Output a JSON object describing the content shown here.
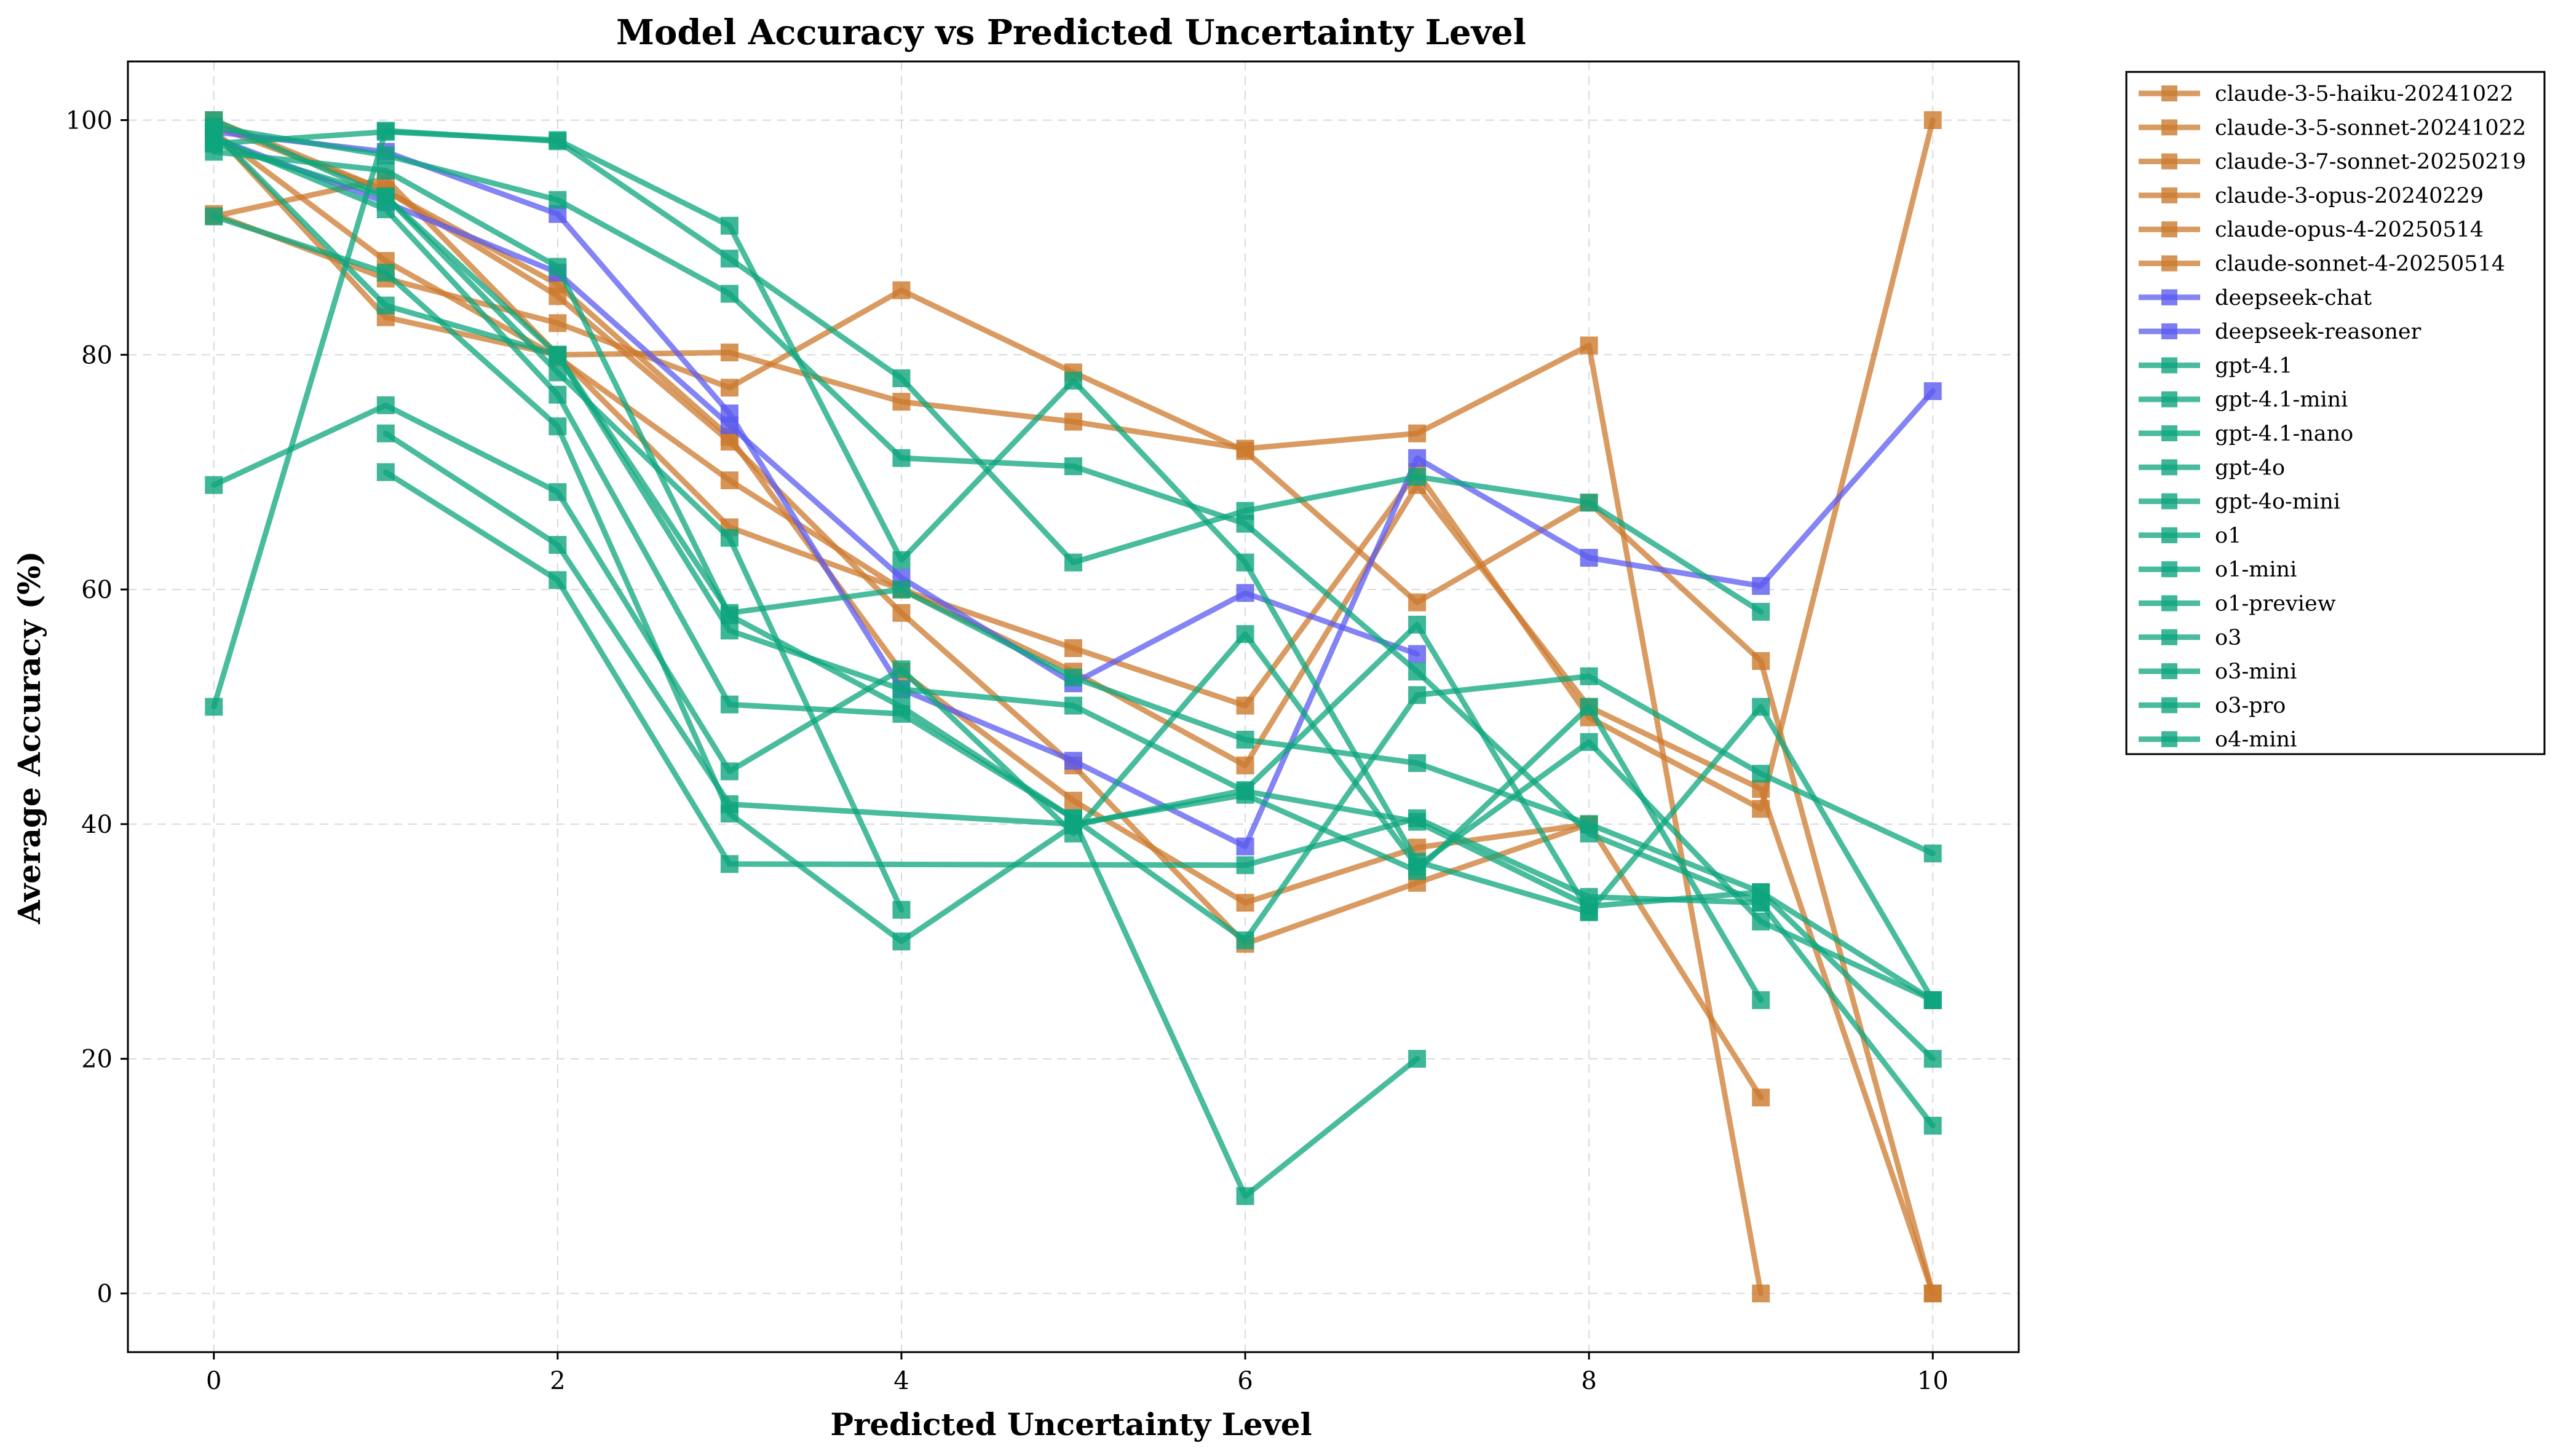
{
  "chart_data": {
    "type": "line",
    "title": "Model Accuracy vs Predicted Uncertainty Level",
    "xlabel": "Predicted Uncertainty Level",
    "ylabel": "Average Accuracy (%)",
    "xlim": [
      -0.5,
      10.5
    ],
    "ylim": [
      -5,
      105
    ],
    "xticks": [
      0,
      2,
      4,
      6,
      8,
      10
    ],
    "yticks": [
      0,
      20,
      40,
      60,
      80,
      100
    ],
    "grid": true,
    "legend_position": "outside-right",
    "colors": {
      "claude": "#cc7a2e",
      "deepseek": "#5b5bf0",
      "openai": "#0ea57e"
    },
    "series": [
      {
        "name": "claude-3-5-haiku-20241022",
        "family": "claude",
        "points": [
          [
            0,
            91.8
          ],
          [
            1,
            95.0
          ],
          [
            2,
            80.0
          ],
          [
            3,
            80.2
          ],
          [
            4,
            76.0
          ],
          [
            5,
            74.3
          ],
          [
            6,
            72.0
          ],
          [
            7,
            73.3
          ],
          [
            8,
            80.8
          ],
          [
            9,
            0.0
          ]
        ]
      },
      {
        "name": "claude-3-5-sonnet-20241022",
        "family": "claude",
        "points": [
          [
            0,
            100.0
          ],
          [
            1,
            94.0
          ],
          [
            2,
            85.0
          ],
          [
            3,
            72.6
          ],
          [
            4,
            58.0
          ],
          [
            5,
            45.0
          ],
          [
            6,
            29.8
          ],
          [
            7,
            35.0
          ],
          [
            8,
            40.0
          ],
          [
            9,
            16.7
          ]
        ]
      },
      {
        "name": "claude-3-7-sonnet-20250219",
        "family": "claude",
        "points": [
          [
            0,
            99.0
          ],
          [
            1,
            88.0
          ],
          [
            2,
            79.8
          ],
          [
            3,
            69.3
          ],
          [
            4,
            60.0
          ],
          [
            5,
            53.0
          ],
          [
            6,
            45.0
          ],
          [
            7,
            68.9
          ],
          [
            8,
            50.0
          ],
          [
            9,
            43.0
          ],
          [
            10,
            0.0
          ]
        ]
      },
      {
        "name": "claude-3-opus-20240229",
        "family": "claude",
        "points": [
          [
            0,
            92.0
          ],
          [
            1,
            86.5
          ],
          [
            2,
            82.7
          ],
          [
            3,
            77.2
          ],
          [
            4,
            85.5
          ],
          [
            5,
            78.5
          ],
          [
            6,
            71.8
          ],
          [
            7,
            58.9
          ],
          [
            8,
            67.4
          ],
          [
            9,
            53.9
          ],
          [
            10,
            0.0
          ]
        ]
      },
      {
        "name": "claude-opus-4-20250514",
        "family": "claude",
        "points": [
          [
            0,
            99.0
          ],
          [
            1,
            83.2
          ],
          [
            2,
            80.0
          ],
          [
            3,
            65.3
          ],
          [
            4,
            60.0
          ],
          [
            5,
            55.0
          ],
          [
            6,
            50.1
          ],
          [
            7,
            70.0
          ],
          [
            8,
            49.1
          ],
          [
            9,
            41.3
          ],
          [
            10,
            100.0
          ]
        ]
      },
      {
        "name": "claude-sonnet-4-20250514",
        "family": "claude",
        "points": [
          [
            0,
            99.5
          ],
          [
            1,
            94.0
          ],
          [
            2,
            86.0
          ],
          [
            3,
            73.0
          ],
          [
            4,
            53.0
          ],
          [
            5,
            42.0
          ],
          [
            6,
            33.3
          ],
          [
            7,
            38.0
          ],
          [
            8,
            40.0
          ]
        ]
      },
      {
        "name": "deepseek-chat",
        "family": "deepseek",
        "points": [
          [
            0,
            99.0
          ],
          [
            1,
            97.3
          ],
          [
            2,
            92.0
          ],
          [
            3,
            75.0
          ],
          [
            4,
            51.5
          ],
          [
            5,
            45.4
          ],
          [
            6,
            38.1
          ],
          [
            7,
            71.2
          ],
          [
            8,
            62.7
          ],
          [
            9,
            60.3
          ],
          [
            10,
            76.9
          ]
        ]
      },
      {
        "name": "deepseek-reasoner",
        "family": "deepseek",
        "points": [
          [
            0,
            98.5
          ],
          [
            1,
            93.0
          ],
          [
            2,
            87.0
          ],
          [
            3,
            74.0
          ],
          [
            4,
            61.0
          ],
          [
            5,
            52.0
          ],
          [
            6,
            59.7
          ],
          [
            7,
            54.5
          ]
        ]
      },
      {
        "name": "gpt-4.1",
        "family": "openai",
        "points": [
          [
            0,
            100.0
          ],
          [
            1,
            93.5
          ],
          [
            2,
            80.0
          ],
          [
            3,
            58.0
          ],
          [
            4,
            60.0
          ],
          [
            5,
            52.5
          ],
          [
            6,
            47.2
          ],
          [
            7,
            45.2
          ],
          [
            8,
            40.0
          ],
          [
            9,
            34.2
          ],
          [
            10,
            20.0
          ]
        ]
      },
      {
        "name": "gpt-4.1-mini",
        "family": "openai",
        "points": [
          [
            0,
            99.0
          ],
          [
            1,
            84.2
          ],
          [
            2,
            80.0
          ],
          [
            3,
            56.5
          ],
          [
            4,
            51.5
          ],
          [
            5,
            50.1
          ],
          [
            6,
            42.8
          ],
          [
            7,
            40.2
          ],
          [
            8,
            33.0
          ],
          [
            9,
            34.2
          ],
          [
            10,
            25.0
          ]
        ]
      },
      {
        "name": "gpt-4.1-nano",
        "family": "openai",
        "points": [
          [
            0,
            68.9
          ],
          [
            1,
            75.7
          ],
          [
            2,
            68.3
          ],
          [
            3,
            44.5
          ],
          [
            4,
            53.2
          ],
          [
            5,
            39.2
          ],
          [
            6,
            56.2
          ],
          [
            7,
            36.4
          ],
          [
            8,
            47.0
          ],
          [
            9,
            31.7
          ],
          [
            10,
            25.0
          ]
        ]
      },
      {
        "name": "gpt-4o",
        "family": "openai",
        "points": [
          [
            1,
            73.3
          ],
          [
            2,
            63.8
          ],
          [
            3,
            41.7
          ],
          [
            5,
            40.0
          ],
          [
            6,
            42.5
          ],
          [
            7,
            36.0
          ],
          [
            8,
            50.0
          ],
          [
            9,
            25.0
          ]
        ]
      },
      {
        "name": "gpt-4o-mini",
        "family": "openai",
        "points": [
          [
            1,
            70.0
          ],
          [
            2,
            60.8
          ],
          [
            3,
            36.6
          ],
          [
            6,
            36.5
          ],
          [
            7,
            40.5
          ],
          [
            8,
            33.8
          ],
          [
            9,
            33.3
          ]
        ]
      },
      {
        "name": "o1",
        "family": "openai",
        "points": [
          [
            0,
            97.3
          ],
          [
            1,
            95.7
          ],
          [
            2,
            87.5
          ],
          [
            3,
            57.8
          ],
          [
            4,
            50.0
          ],
          [
            5,
            40.5
          ],
          [
            6,
            30.1
          ],
          [
            7,
            51.0
          ],
          [
            8,
            52.6
          ],
          [
            9,
            44.3
          ],
          [
            10,
            37.5
          ]
        ]
      },
      {
        "name": "o1-mini",
        "family": "openai",
        "points": [
          [
            0,
            50.0
          ],
          [
            1,
            99.1
          ],
          [
            2,
            98.2
          ],
          [
            3,
            88.2
          ],
          [
            4,
            78.0
          ],
          [
            5,
            62.3
          ],
          [
            6,
            66.7
          ],
          [
            7,
            69.6
          ],
          [
            8,
            67.4
          ],
          [
            9,
            58.1
          ]
        ]
      },
      {
        "name": "o1-preview",
        "family": "openai",
        "points": [
          [
            0,
            98.5
          ],
          [
            1,
            92.4
          ],
          [
            2,
            76.6
          ],
          [
            3,
            50.2
          ],
          [
            4,
            49.4
          ],
          [
            5,
            40.5
          ],
          [
            6,
            8.3
          ],
          [
            7,
            20.0
          ]
        ]
      },
      {
        "name": "o3",
        "family": "openai",
        "points": [
          [
            0,
            99.4
          ],
          [
            1,
            97.0
          ],
          [
            2,
            93.2
          ],
          [
            3,
            85.2
          ],
          [
            4,
            71.2
          ],
          [
            5,
            70.5
          ],
          [
            6,
            65.6
          ],
          [
            7,
            53.0
          ],
          [
            8,
            39.2
          ],
          [
            9,
            33.3
          ],
          [
            10,
            14.3
          ]
        ]
      },
      {
        "name": "o3-mini",
        "family": "openai",
        "points": [
          [
            0,
            91.8
          ],
          [
            1,
            87.0
          ],
          [
            2,
            73.9
          ],
          [
            3,
            40.9
          ],
          [
            4,
            30.0
          ],
          [
            5,
            39.9
          ],
          [
            6,
            42.9
          ],
          [
            7,
            57.0
          ],
          [
            8,
            32.5
          ],
          [
            9,
            50.0
          ],
          [
            10,
            25.0
          ]
        ]
      },
      {
        "name": "o3-pro",
        "family": "openai",
        "points": [
          [
            0,
            98.0
          ],
          [
            1,
            93.5
          ],
          [
            2,
            78.5
          ],
          [
            3,
            64.4
          ],
          [
            4,
            32.7
          ]
        ]
      },
      {
        "name": "o4-mini",
        "family": "openai",
        "points": [
          [
            0,
            98.0
          ],
          [
            1,
            99.0
          ],
          [
            2,
            98.3
          ],
          [
            3,
            91.0
          ],
          [
            4,
            62.5
          ],
          [
            5,
            77.8
          ],
          [
            6,
            62.3
          ],
          [
            7,
            36.8
          ],
          [
            8,
            32.5
          ]
        ]
      }
    ]
  }
}
